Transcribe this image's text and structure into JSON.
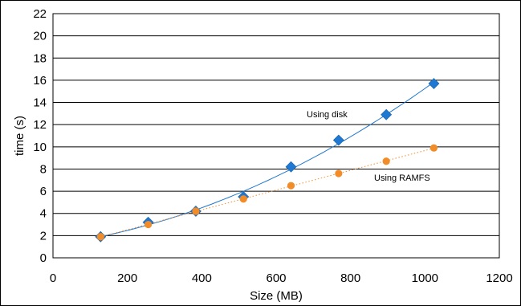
{
  "chart_data": {
    "type": "scatter",
    "title": "",
    "xlabel": "Size (MB)",
    "ylabel": "time (s)",
    "xlim": [
      0,
      1200
    ],
    "ylim": [
      0,
      22
    ],
    "x_ticks": [
      0,
      200,
      400,
      600,
      800,
      1000,
      1200
    ],
    "y_ticks": [
      0,
      2,
      4,
      6,
      8,
      10,
      12,
      14,
      16,
      18,
      20,
      22
    ],
    "grid": "horizontal",
    "series": [
      {
        "name": "Using disk",
        "marker": "diamond",
        "color": "#1f78d1",
        "trendline": "solid",
        "x": [
          128,
          256,
          384,
          512,
          640,
          768,
          896,
          1024
        ],
        "y": [
          1.9,
          3.2,
          4.2,
          5.5,
          8.2,
          10.6,
          12.9,
          15.7
        ]
      },
      {
        "name": "Using RAMFS",
        "marker": "circle",
        "color": "#f28c28",
        "trendline": "dotted",
        "x": [
          128,
          256,
          384,
          512,
          640,
          768,
          896,
          1024
        ],
        "y": [
          1.9,
          3.0,
          4.2,
          5.3,
          6.5,
          7.6,
          8.7,
          9.9
        ]
      }
    ],
    "annotations": [
      {
        "text": "Using disk",
        "series": "Using disk"
      },
      {
        "text": "Using RAMFS",
        "series": "Using RAMFS"
      }
    ]
  }
}
